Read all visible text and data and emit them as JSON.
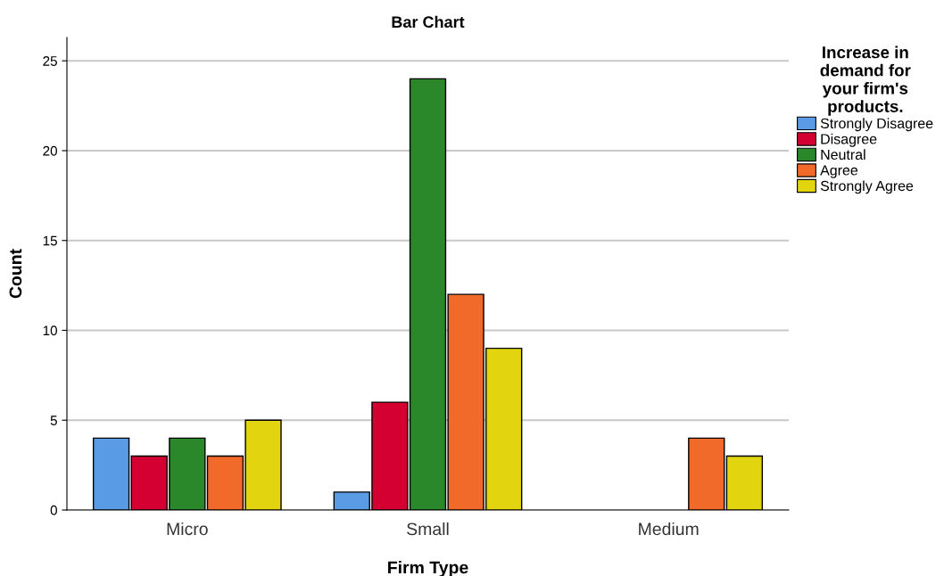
{
  "chart_data": {
    "type": "bar",
    "title": "Bar Chart",
    "xlabel": "Firm Type",
    "ylabel": "Count",
    "legend_title": "Increase in\ndemand for\nyour firm's\nproducts.",
    "categories": [
      "Micro",
      "Small",
      "Medium"
    ],
    "series": [
      {
        "name": "Strongly Disagree",
        "color": "#5a9be6",
        "values": [
          4,
          1,
          0
        ]
      },
      {
        "name": "Disagree",
        "color": "#d50032",
        "values": [
          3,
          6,
          0
        ]
      },
      {
        "name": "Neutral",
        "color": "#2a882a",
        "values": [
          4,
          24,
          0
        ]
      },
      {
        "name": "Agree",
        "color": "#f26a2a",
        "values": [
          3,
          12,
          4
        ]
      },
      {
        "name": "Strongly Agree",
        "color": "#e2d50f",
        "values": [
          5,
          9,
          3
        ]
      }
    ],
    "ylim": [
      0,
      26.3
    ],
    "yticks": [
      0,
      5,
      10,
      15,
      20,
      25
    ],
    "grid": "y",
    "legend": "right"
  }
}
